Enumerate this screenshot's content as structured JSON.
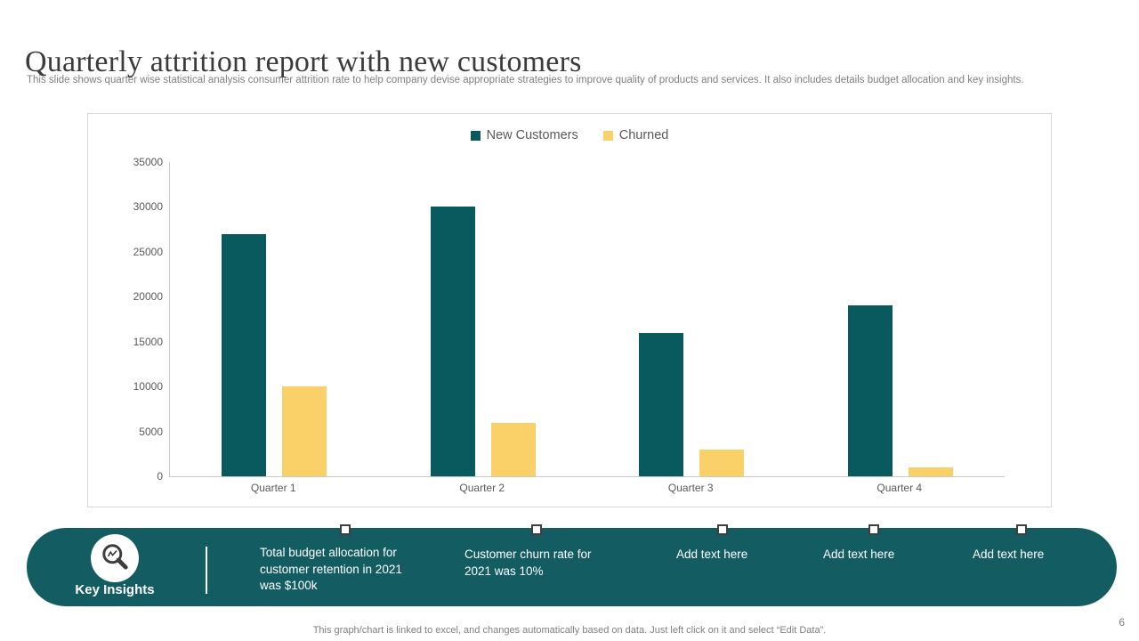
{
  "page": {
    "title": "Quarterly attrition report with new customers",
    "subtitle": "This slide shows quarter wise statistical analysis consumer attrition rate to help company devise appropriate strategies to improve quality of products and services. It also includes details budget allocation  and key insights.",
    "footer_note": "This graph/chart is linked to excel,  and changes automatically based on data. Just left click on it and select “Edit Data”.",
    "page_number": "6"
  },
  "colors": {
    "new_customers": "#095a5f",
    "churned": "#fad169",
    "banner": "#135d62",
    "axis_line": "#c9c9c9",
    "tick_text": "#595959"
  },
  "chart_data": {
    "type": "bar",
    "title": "",
    "xlabel": "",
    "ylabel": "",
    "categories": [
      "Quarter 1",
      "Quarter 2",
      "Quarter 3",
      "Quarter 4"
    ],
    "series": [
      {
        "name": "New Customers",
        "color": "#095a5f",
        "values": [
          27000,
          30000,
          16000,
          19000
        ]
      },
      {
        "name": "Churned",
        "color": "#fad169",
        "values": [
          10000,
          6000,
          3000,
          1000
        ]
      }
    ],
    "ylim": [
      0,
      35000
    ],
    "ytick_step": 5000,
    "grid": false,
    "legend_position": "top-center"
  },
  "insights": {
    "label": "Key Insights",
    "icon": "magnifier-chart-icon",
    "items": [
      "Total budget allocation for customer retention in 2021 was $100k",
      "Customer churn rate for 2021 was 10%",
      "Add text here",
      "Add text here",
      "Add text here"
    ]
  }
}
